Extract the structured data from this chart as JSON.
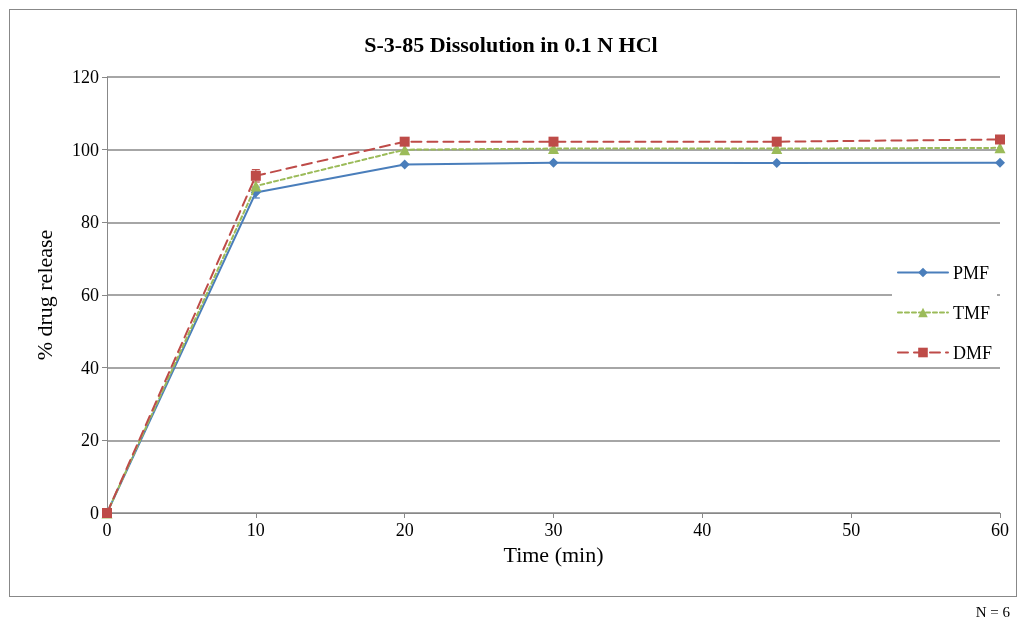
{
  "chart_data": {
    "type": "line",
    "title": "S-3-85 Dissolution in 0.1 N HCl",
    "xlabel": "Time (min)",
    "ylabel": "% drug release",
    "x": [
      0,
      10,
      20,
      30,
      45,
      60
    ],
    "series": [
      {
        "name": "PMF",
        "color": "#4a7ebb",
        "marker": "diamond",
        "line_style": "solid",
        "values": [
          0,
          88.2,
          95.9,
          96.4,
          96.3,
          96.4
        ],
        "errors": [
          null,
          1.5,
          null,
          null,
          null,
          null
        ]
      },
      {
        "name": "TMF",
        "color": "#9bbb59",
        "marker": "triangle",
        "line_style": "dotted",
        "values": [
          0,
          90,
          100,
          100.3,
          100.3,
          100.5
        ]
      },
      {
        "name": "DMF",
        "color": "#be4b48",
        "marker": "square",
        "line_style": "dashed",
        "values": [
          0,
          92.8,
          102.2,
          102.2,
          102.2,
          102.8
        ],
        "errors": [
          null,
          1.7,
          null,
          null,
          null,
          null
        ]
      }
    ],
    "xlim": [
      0,
      60
    ],
    "xticks": [
      0,
      10,
      20,
      30,
      40,
      50,
      60
    ],
    "ylim": [
      0,
      120
    ],
    "yticks": [
      0,
      20,
      40,
      60,
      80,
      100,
      120
    ],
    "grid": "y",
    "legend": "right",
    "annotations": [
      "N = 6"
    ]
  }
}
